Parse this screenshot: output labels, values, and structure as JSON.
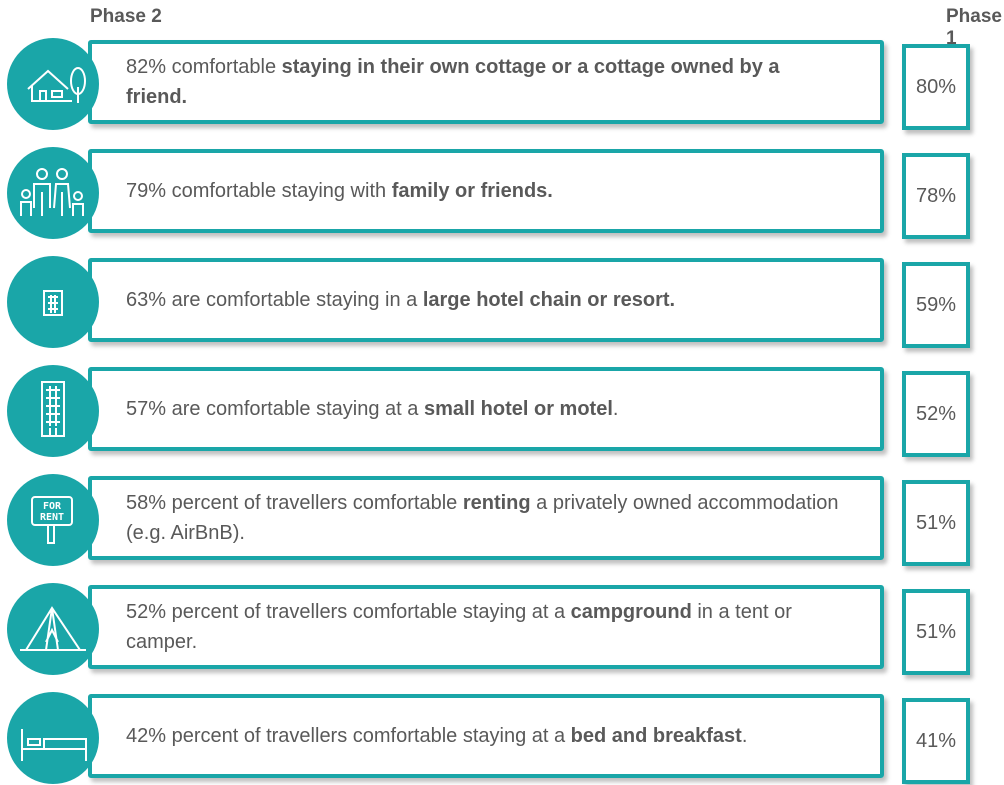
{
  "header": {
    "left": "Phase 2",
    "right": "Phase 1"
  },
  "rows": [
    {
      "segments": [
        {
          "text": "82% comfortable ",
          "bold": false
        },
        {
          "text": "staying in their own cottage or a cottage owned by a friend.",
          "bold": true
        }
      ],
      "phase1": "80%"
    },
    {
      "segments": [
        {
          "text": "79% comfortable staying with ",
          "bold": false
        },
        {
          "text": "family or friends.",
          "bold": true
        }
      ],
      "phase1": "78%"
    },
    {
      "segments": [
        {
          "text": "63% are comfortable staying in a ",
          "bold": false
        },
        {
          "text": "large hotel chain or resort.",
          "bold": true
        }
      ],
      "phase1": "59%"
    },
    {
      "segments": [
        {
          "text": "57% are comfortable staying at a ",
          "bold": false
        },
        {
          "text": "small hotel or motel",
          "bold": true
        },
        {
          "text": ".",
          "bold": false
        }
      ],
      "phase1": "52%"
    },
    {
      "segments": [
        {
          "text": "58% percent of travellers comfortable ",
          "bold": false
        },
        {
          "text": "renting",
          "bold": true
        },
        {
          "text": " a privately owned accommodation (e.g. AirBnB).",
          "bold": false
        }
      ],
      "phase1": "51%",
      "sign": [
        "FOR",
        "RENT"
      ]
    },
    {
      "segments": [
        {
          "text": "52% percent of travellers comfortable staying at a ",
          "bold": false
        },
        {
          "text": "campground",
          "bold": true
        },
        {
          "text": " in a tent or camper.",
          "bold": false
        }
      ],
      "phase1": "51%"
    },
    {
      "segments": [
        {
          "text": "42% percent of travellers comfortable staying at a ",
          "bold": false
        },
        {
          "text": "bed and breakfast",
          "bold": true
        },
        {
          "text": ".",
          "bold": false
        }
      ],
      "phase1": "41%"
    }
  ]
}
